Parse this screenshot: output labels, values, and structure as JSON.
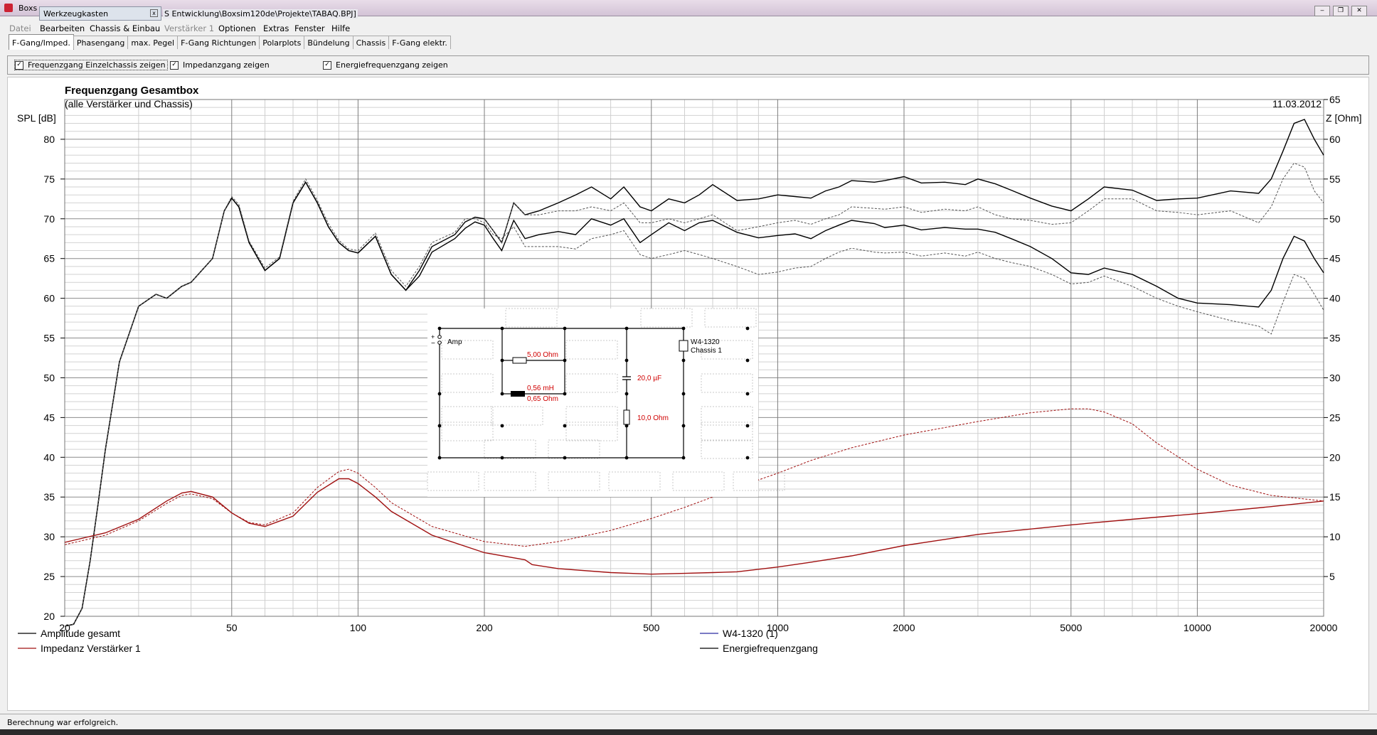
{
  "window": {
    "title_prefix": "Boxs",
    "tool_tab": "Werkzeugkasten",
    "title_path": "S Entwicklung\\Boxsim120de\\Projekte\\TABAQ.BPJ]",
    "controls": [
      "‒",
      "❐",
      "✕"
    ]
  },
  "menu": [
    "Datei",
    "Bearbeiten",
    "Chassis & Einbau",
    "Verstärker 1",
    "Optionen",
    "Extras",
    "Fenster",
    "Hilfe"
  ],
  "tabs": [
    {
      "label": "F-Gang/Imped.",
      "active": true
    },
    {
      "label": "Phasengang",
      "active": false
    },
    {
      "label": "max. Pegel",
      "active": false
    },
    {
      "label": "F-Gang Richtungen",
      "active": false
    },
    {
      "label": "Polarplots",
      "active": false
    },
    {
      "label": "Bündelung",
      "active": false
    },
    {
      "label": "Chassis",
      "active": false
    },
    {
      "label": "F-Gang elektr.",
      "active": false
    }
  ],
  "options": [
    {
      "label": "Frequenzgang Einzelchassis zeigen",
      "checked": true
    },
    {
      "label": "Impedanzgang zeigen",
      "checked": true
    },
    {
      "label": "Energiefrequenzgang zeigen",
      "checked": true
    }
  ],
  "status": "Berechnung war erfolgreich.",
  "colors": {
    "black": "#000000",
    "red": "#a01010",
    "blue": "#2a2aa0",
    "circuit_red": "#d00000"
  },
  "chart_data": {
    "type": "line",
    "title": "Frequenzgang Gesamtbox",
    "subtitle": "(alle Verstärker und Chassis)",
    "date": "11.03.2012",
    "ylabel": "SPL [dB]",
    "y2label": "Z [Ohm]",
    "x_scale": "log",
    "xlim": [
      20,
      20000
    ],
    "ylim": [
      20,
      85
    ],
    "y2lim": [
      0,
      65
    ],
    "grid": true,
    "legend_position": "bottom",
    "x_ticks": [
      20,
      50,
      100,
      200,
      500,
      1000,
      2000,
      5000,
      10000,
      20000
    ],
    "y_ticks": [
      20,
      25,
      30,
      35,
      40,
      45,
      50,
      55,
      60,
      65,
      70,
      75,
      80
    ],
    "y2_ticks": [
      5,
      10,
      15,
      20,
      25,
      30,
      35,
      40,
      45,
      50,
      55,
      60,
      65
    ],
    "legend": [
      {
        "name": "Amplitude gesamt",
        "color": "#000000",
        "column": 0
      },
      {
        "name": "Impedanz Verstärker 1",
        "color": "#a01010",
        "column": 0
      },
      {
        "name": "W4-1320 (1)",
        "color": "#2a2aa0",
        "column": 1
      },
      {
        "name": "Energiefrequenzgang",
        "color": "#000000",
        "column": 1
      }
    ],
    "series": [
      {
        "name": "Amplitude gesamt",
        "axis": "left",
        "color": "#000000",
        "dash": false,
        "x": [
          20,
          21,
          22,
          23,
          24,
          25,
          27,
          30,
          33,
          35,
          38,
          40,
          45,
          48,
          50,
          52,
          55,
          60,
          65,
          70,
          75,
          80,
          85,
          90,
          95,
          100,
          110,
          120,
          130,
          140,
          150,
          170,
          180,
          190,
          200,
          210,
          220,
          235,
          250,
          270,
          300,
          330,
          360,
          400,
          430,
          470,
          500,
          550,
          600,
          650,
          700,
          800,
          900,
          1000,
          1100,
          1200,
          1300,
          1400,
          1500,
          1700,
          1800,
          2000,
          2200,
          2500,
          2800,
          3000,
          3300,
          3600,
          4000,
          4500,
          5000,
          5500,
          6000,
          7000,
          8000,
          9000,
          10000,
          12000,
          14000,
          15000,
          16000,
          17000,
          18000,
          19000,
          20000
        ],
        "y": [
          18,
          19,
          21,
          27,
          34,
          41,
          52,
          59,
          60.5,
          60,
          61.5,
          62,
          65,
          71,
          72.6,
          71.5,
          67,
          63.5,
          65,
          72,
          74.6,
          72,
          69,
          67,
          66,
          65.7,
          67.8,
          63,
          61,
          62.8,
          65.8,
          67.5,
          68.8,
          69.6,
          69.2,
          67.5,
          66,
          69.8,
          67.5,
          68,
          68.4,
          68,
          70,
          69.2,
          70,
          67,
          68,
          69.5,
          68.5,
          69.5,
          69.8,
          68.3,
          67.6,
          67.9,
          68.1,
          67.5,
          68.5,
          69.2,
          69.8,
          69.4,
          68.9,
          69.2,
          68.6,
          68.9,
          68.7,
          68.7,
          68.3,
          67.5,
          66.5,
          65,
          63.2,
          63,
          63.8,
          63,
          61.5,
          60,
          59.4,
          59.2,
          58.9,
          61,
          65,
          67.8,
          67.2,
          65,
          63.2
        ]
      },
      {
        "name": "Energiefrequenzgang",
        "axis": "left",
        "color": "#000000",
        "dash": false,
        "x": [
          20,
          21,
          22,
          23,
          24,
          25,
          27,
          30,
          33,
          35,
          38,
          40,
          45,
          48,
          50,
          52,
          55,
          60,
          65,
          70,
          75,
          80,
          85,
          90,
          95,
          100,
          110,
          120,
          130,
          140,
          150,
          170,
          180,
          190,
          200,
          210,
          220,
          235,
          250,
          270,
          300,
          330,
          360,
          400,
          430,
          470,
          500,
          550,
          600,
          650,
          700,
          800,
          900,
          1000,
          1100,
          1200,
          1300,
          1400,
          1500,
          1700,
          1800,
          2000,
          2200,
          2500,
          2800,
          3000,
          3300,
          3600,
          4000,
          4500,
          5000,
          5500,
          6000,
          7000,
          8000,
          9000,
          10000,
          12000,
          14000,
          15000,
          16000,
          17000,
          18000,
          19000,
          20000
        ],
        "y": [
          18,
          19,
          21,
          27,
          34,
          41,
          52,
          59,
          60.5,
          60,
          61.5,
          62,
          65,
          71,
          72.6,
          71.5,
          67,
          63.5,
          65,
          72,
          74.6,
          72,
          69,
          67,
          66,
          65.7,
          67.8,
          63,
          61,
          63.5,
          66.5,
          68,
          69.6,
          70.2,
          70,
          68.5,
          67,
          72,
          70.5,
          71,
          72,
          73,
          74,
          72.5,
          74,
          71.5,
          71,
          72.5,
          72,
          73,
          74.3,
          72.3,
          72.5,
          73,
          72.8,
          72.6,
          73.5,
          74,
          74.8,
          74.6,
          74.8,
          75.3,
          74.5,
          74.6,
          74.3,
          75,
          74.4,
          73.6,
          72.6,
          71.6,
          71,
          72.5,
          74,
          73.6,
          72.3,
          72.5,
          72.6,
          73.5,
          73.2,
          75,
          78.5,
          82,
          82.5,
          80,
          78
        ]
      },
      {
        "name": "Amplitude Chassis",
        "axis": "left",
        "color": "#555555",
        "dash": true,
        "x": [
          20,
          21,
          22,
          23,
          24,
          25,
          27,
          30,
          33,
          35,
          38,
          40,
          45,
          48,
          50,
          52,
          55,
          60,
          65,
          70,
          75,
          80,
          85,
          90,
          95,
          100,
          110,
          120,
          130,
          140,
          150,
          170,
          180,
          190,
          200,
          210,
          220,
          235,
          250,
          270,
          300,
          330,
          360,
          400,
          430,
          470,
          500,
          550,
          600,
          650,
          700,
          800,
          900,
          1000,
          1100,
          1200,
          1300,
          1400,
          1500,
          1700,
          1800,
          2000,
          2200,
          2500,
          2800,
          3000,
          3300,
          3600,
          4000,
          4500,
          5000,
          5500,
          6000,
          7000,
          8000,
          9000,
          10000,
          12000,
          14000,
          15000,
          16000,
          17000,
          18000,
          19000,
          20000
        ],
        "y": [
          18,
          19,
          21,
          27,
          34,
          41,
          52,
          59,
          60.5,
          60,
          61.5,
          62,
          65,
          71,
          72.8,
          71.8,
          67.2,
          63.8,
          65.2,
          72.2,
          75,
          72.3,
          69.4,
          67.3,
          66.2,
          66,
          68.2,
          63.5,
          61.5,
          64,
          67,
          68.3,
          70,
          70,
          69.5,
          68,
          67.5,
          69,
          66.5,
          66.5,
          66.5,
          66.2,
          67.5,
          68,
          68.5,
          65.5,
          65,
          65.5,
          66,
          65.5,
          65,
          64,
          63,
          63.3,
          63.8,
          64,
          65,
          65.8,
          66.3,
          65.8,
          65.7,
          65.8,
          65.3,
          65.7,
          65.3,
          65.8,
          65,
          64.5,
          64,
          63,
          61.8,
          62,
          62.8,
          61.5,
          60,
          59,
          58.3,
          57.2,
          56.5,
          55.5,
          59.5,
          63,
          62.5,
          60.5,
          58.5
        ]
      },
      {
        "name": "Energiefrequenzgang Chassis",
        "axis": "left",
        "color": "#555555",
        "dash": true,
        "x": [
          200,
          210,
          220,
          235,
          250,
          270,
          300,
          330,
          360,
          400,
          430,
          470,
          500,
          550,
          600,
          650,
          700,
          800,
          900,
          1000,
          1100,
          1200,
          1300,
          1400,
          1500,
          1700,
          1800,
          2000,
          2200,
          2500,
          2800,
          3000,
          3300,
          3600,
          4000,
          4500,
          5000,
          5500,
          6000,
          7000,
          8000,
          9000,
          10000,
          12000,
          14000,
          15000,
          16000,
          17000,
          18000,
          19000,
          20000
        ],
        "y": [
          70,
          68.5,
          67,
          72,
          70.5,
          70.5,
          71,
          71,
          71.5,
          71,
          72,
          69.5,
          69.5,
          70,
          69.5,
          70,
          70.5,
          68.5,
          69,
          69.5,
          69.8,
          69.3,
          70,
          70.5,
          71.5,
          71.3,
          71.2,
          71.5,
          70.8,
          71.2,
          71,
          71.5,
          70.5,
          70,
          69.8,
          69.3,
          69.5,
          71,
          72.5,
          72.5,
          71,
          70.8,
          70.5,
          71,
          69.5,
          71.5,
          75,
          77,
          76.5,
          73.5,
          72
        ]
      },
      {
        "name": "Impedanz Verstärker 1",
        "axis": "right",
        "color": "#a01010",
        "dash": false,
        "x": [
          20,
          25,
          30,
          35,
          38,
          40,
          45,
          50,
          55,
          60,
          70,
          80,
          90,
          95,
          100,
          110,
          120,
          150,
          200,
          250,
          260,
          300,
          400,
          500,
          600,
          700,
          800,
          1000,
          1200,
          1500,
          2000,
          3000,
          5000,
          7000,
          10000,
          15000,
          20000
        ],
        "y": [
          9.3,
          10.5,
          12.2,
          14.5,
          15.5,
          15.7,
          15,
          13,
          11.7,
          11.3,
          12.6,
          15.6,
          17.3,
          17.3,
          16.7,
          15,
          13.2,
          10.2,
          8,
          7.1,
          6.5,
          6,
          5.5,
          5.3,
          5.4,
          5.5,
          5.6,
          6.2,
          6.8,
          7.6,
          8.9,
          10.3,
          11.5,
          12.2,
          12.9,
          13.8,
          14.5
        ]
      },
      {
        "name": "Impedanz Chassis",
        "axis": "right",
        "color": "#a01010",
        "dash": true,
        "x": [
          20,
          25,
          30,
          35,
          38,
          40,
          45,
          50,
          55,
          60,
          70,
          80,
          90,
          95,
          100,
          110,
          120,
          150,
          200,
          250,
          300,
          400,
          500,
          600,
          700,
          800,
          1000,
          1200,
          1500,
          2000,
          3000,
          4000,
          5000,
          5500,
          6000,
          7000,
          8000,
          10000,
          12000,
          15000,
          20000
        ],
        "y": [
          9,
          10.2,
          12,
          14.2,
          15.2,
          15.4,
          14.8,
          13,
          11.8,
          11.5,
          13,
          16.2,
          18.2,
          18.5,
          18,
          16.2,
          14.3,
          11.3,
          9.4,
          8.8,
          9.4,
          10.8,
          12.3,
          13.7,
          15,
          16.2,
          18,
          19.6,
          21.2,
          22.8,
          24.5,
          25.6,
          26.1,
          26.1,
          25.7,
          24.2,
          21.8,
          18.5,
          16.5,
          15.2,
          14.5
        ]
      }
    ]
  },
  "circuit": {
    "amp_label": "Amp",
    "plus": "+",
    "minus": "−",
    "r1": "5,00 Ohm",
    "l1": "0,56 mH",
    "l1_r": "0,65 Ohm",
    "c1": "20,0 µF",
    "r2": "10,0 Ohm",
    "driver_name": "W4-1320",
    "driver_sub": "Chassis 1"
  }
}
